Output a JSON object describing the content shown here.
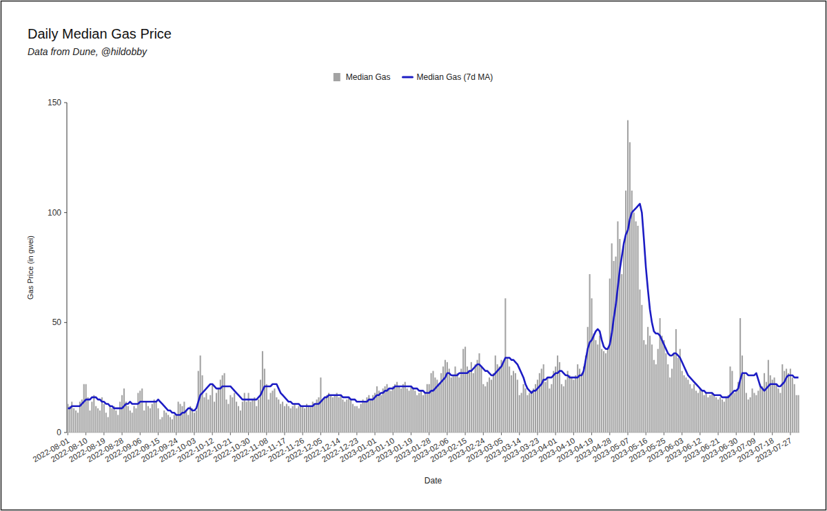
{
  "chart_data": {
    "type": "bar",
    "title": "Daily Median Gas Price",
    "subtitle": "Data from Dune, @hildobby",
    "x_label": "Date",
    "y_label": "Gas Price (in gwei)",
    "categories": [
      "2022-08-01",
      null,
      null,
      null,
      null,
      null,
      null,
      null,
      null,
      "2022-08-10",
      null,
      null,
      null,
      null,
      null,
      null,
      null,
      null,
      "2022-08-19",
      null,
      null,
      null,
      null,
      null,
      null,
      null,
      null,
      "2022-08-28",
      null,
      null,
      null,
      null,
      null,
      null,
      null,
      null,
      "2022-09-06",
      null,
      null,
      null,
      null,
      null,
      null,
      null,
      null,
      "2022-09-15",
      null,
      null,
      null,
      null,
      null,
      null,
      null,
      null,
      "2022-09-24",
      null,
      null,
      null,
      null,
      null,
      null,
      null,
      null,
      "2022-10-03",
      null,
      null,
      null,
      null,
      null,
      null,
      null,
      null,
      "2022-10-12",
      null,
      null,
      null,
      null,
      null,
      null,
      null,
      null,
      "2022-10-21",
      null,
      null,
      null,
      null,
      null,
      null,
      null,
      null,
      "2022-10-30",
      null,
      null,
      null,
      null,
      null,
      null,
      null,
      null,
      "2022-11-08",
      null,
      null,
      null,
      null,
      null,
      null,
      null,
      null,
      "2022-11-17",
      null,
      null,
      null,
      null,
      null,
      null,
      null,
      null,
      "2022-11-26",
      null,
      null,
      null,
      null,
      null,
      null,
      null,
      null,
      "2022-12-05",
      null,
      null,
      null,
      null,
      null,
      null,
      null,
      null,
      "2022-12-14",
      null,
      null,
      null,
      null,
      null,
      null,
      null,
      null,
      "2022-12-23",
      null,
      null,
      null,
      null,
      null,
      null,
      null,
      null,
      "2023-01-01",
      null,
      null,
      null,
      null,
      null,
      null,
      null,
      null,
      "2023-01-10",
      null,
      null,
      null,
      null,
      null,
      null,
      null,
      null,
      "2023-01-19",
      null,
      null,
      null,
      null,
      null,
      null,
      null,
      null,
      "2023-01-28",
      null,
      null,
      null,
      null,
      null,
      null,
      null,
      null,
      "2023-02-06",
      null,
      null,
      null,
      null,
      null,
      null,
      null,
      null,
      "2023-02-15",
      null,
      null,
      null,
      null,
      null,
      null,
      null,
      null,
      "2023-02-24",
      null,
      null,
      null,
      null,
      null,
      null,
      null,
      null,
      "2023-03-05",
      null,
      null,
      null,
      null,
      null,
      null,
      null,
      null,
      "2023-03-14",
      null,
      null,
      null,
      null,
      null,
      null,
      null,
      null,
      "2023-03-23",
      null,
      null,
      null,
      null,
      null,
      null,
      null,
      null,
      "2023-04-01",
      null,
      null,
      null,
      null,
      null,
      null,
      null,
      null,
      "2023-04-10",
      null,
      null,
      null,
      null,
      null,
      null,
      null,
      null,
      "2023-04-19",
      null,
      null,
      null,
      null,
      null,
      null,
      null,
      null,
      "2023-04-28",
      null,
      null,
      null,
      null,
      null,
      null,
      null,
      null,
      "2023-05-07",
      null,
      null,
      null,
      null,
      null,
      null,
      null,
      null,
      "2023-05-16",
      null,
      null,
      null,
      null,
      null,
      null,
      null,
      null,
      "2023-05-25",
      null,
      null,
      null,
      null,
      null,
      null,
      null,
      null,
      "2023-06-03",
      null,
      null,
      null,
      null,
      null,
      null,
      null,
      null,
      "2023-06-12",
      null,
      null,
      null,
      null,
      null,
      null,
      null,
      null,
      "2023-06-21",
      null,
      null,
      null,
      null,
      null,
      null,
      null,
      null,
      "2023-06-30",
      null,
      null,
      null,
      null,
      null,
      null,
      null,
      null,
      "2023-07-09",
      null,
      null,
      null,
      null,
      null,
      null,
      null,
      null,
      "2023-07-18",
      null,
      null,
      null,
      null,
      null,
      null,
      null,
      null,
      "2023-07-27",
      null,
      null,
      null,
      null
    ],
    "series": [
      {
        "name": "Median Gas",
        "type": "bar",
        "color": "#a3a3a3",
        "values": [
          13,
          12,
          14,
          11,
          10,
          9,
          14,
          15,
          22,
          22,
          16,
          10,
          14,
          17,
          12,
          11,
          10,
          16,
          13,
          9,
          7,
          12,
          11,
          12,
          10,
          8,
          14,
          17,
          20,
          14,
          12,
          10,
          9,
          12,
          11,
          18,
          19,
          20,
          10,
          14,
          12,
          11,
          13,
          15,
          14,
          11,
          6,
          7,
          10,
          9,
          8,
          7,
          6,
          8,
          8,
          14,
          13,
          12,
          14,
          10,
          8,
          12,
          11,
          9,
          10,
          28,
          35,
          26,
          16,
          18,
          15,
          17,
          22,
          14,
          18,
          20,
          24,
          26,
          27,
          15,
          13,
          17,
          16,
          18,
          14,
          12,
          10,
          14,
          18,
          14,
          18,
          14,
          15,
          16,
          12,
          15,
          24,
          37,
          29,
          22,
          15,
          18,
          19,
          20,
          16,
          15,
          13,
          14,
          12,
          13,
          12,
          11,
          12,
          13,
          11,
          12,
          12,
          12,
          11,
          13,
          12,
          12,
          14,
          13,
          15,
          16,
          25,
          15,
          16,
          17,
          18,
          17,
          16,
          17,
          18,
          16,
          17,
          15,
          14,
          15,
          16,
          15,
          13,
          12,
          12,
          11,
          13,
          15,
          14,
          16,
          17,
          15,
          17,
          18,
          21,
          19,
          17,
          20,
          21,
          22,
          20,
          19,
          21,
          22,
          23,
          21,
          20,
          22,
          23,
          20,
          19,
          21,
          20,
          19,
          17,
          18,
          19,
          17,
          18,
          22,
          22,
          27,
          28,
          25,
          24,
          22,
          27,
          30,
          33,
          32,
          29,
          25,
          26,
          30,
          27,
          25,
          29,
          38,
          39,
          30,
          28,
          32,
          27,
          31,
          33,
          36,
          30,
          22,
          21,
          23,
          25,
          24,
          27,
          35,
          31,
          30,
          33,
          32,
          61,
          34,
          30,
          26,
          28,
          27,
          24,
          17,
          18,
          22,
          20,
          17,
          18,
          19,
          20,
          22,
          24,
          27,
          29,
          31,
          23,
          25,
          20,
          22,
          28,
          30,
          35,
          32,
          22,
          21,
          24,
          28,
          26,
          25,
          24,
          26,
          31,
          29,
          27,
          30,
          35,
          48,
          72,
          61,
          45,
          42,
          40,
          44,
          38,
          37,
          36,
          38,
          70,
          86,
          78,
          80,
          96,
          88,
          72,
          86,
          110,
          142,
          132,
          110,
          100,
          96,
          94,
          65,
          58,
          42,
          40,
          48,
          44,
          40,
          33,
          31,
          38,
          52,
          44,
          42,
          36,
          31,
          25,
          29,
          36,
          47,
          34,
          38,
          28,
          26,
          25,
          24,
          22,
          20,
          22,
          19,
          18,
          20,
          19,
          17,
          18,
          16,
          17,
          18,
          17,
          16,
          15,
          16,
          15,
          14,
          16,
          17,
          30,
          28,
          18,
          19,
          23,
          52,
          35,
          27,
          18,
          15,
          16,
          20,
          18,
          17,
          19,
          22,
          21,
          27,
          23,
          33,
          26,
          24,
          25,
          22,
          20,
          18,
          31,
          28,
          29,
          27,
          29,
          25,
          22,
          17,
          17
        ]
      },
      {
        "name": "Median Gas (7d MA)",
        "type": "line",
        "color": "#1c1cc4",
        "values": [
          11,
          11,
          12,
          12,
          12,
          12,
          12,
          13,
          14,
          15,
          15,
          15,
          16,
          16,
          16,
          15,
          15,
          14,
          14,
          13,
          13,
          12,
          12,
          11,
          11,
          11,
          11,
          11,
          12,
          13,
          13,
          14,
          13,
          13,
          13,
          13,
          14,
          14,
          14,
          14,
          14,
          14,
          14,
          14,
          14,
          15,
          14,
          13,
          12,
          11,
          10,
          10,
          9,
          9,
          8,
          8,
          8,
          9,
          9,
          10,
          11,
          11,
          10,
          10,
          11,
          14,
          17,
          18,
          19,
          20,
          21,
          22,
          22,
          21,
          20,
          20,
          20,
          21,
          21,
          21,
          21,
          21,
          20,
          19,
          18,
          17,
          16,
          15,
          15,
          15,
          15,
          15,
          15,
          15,
          15,
          16,
          17,
          19,
          21,
          21,
          21,
          21,
          22,
          22,
          22,
          20,
          18,
          17,
          16,
          15,
          14,
          14,
          13,
          13,
          13,
          13,
          12,
          12,
          12,
          12,
          12,
          12,
          12,
          13,
          13,
          13,
          14,
          15,
          16,
          16,
          17,
          17,
          17,
          17,
          17,
          17,
          17,
          16,
          16,
          16,
          16,
          15,
          15,
          15,
          14,
          14,
          14,
          14,
          14,
          14,
          15,
          15,
          15,
          16,
          17,
          17,
          18,
          18,
          19,
          19,
          20,
          20,
          20,
          21,
          21,
          21,
          21,
          21,
          21,
          21,
          21,
          21,
          20,
          20,
          20,
          19,
          19,
          19,
          18,
          18,
          18,
          19,
          19,
          20,
          21,
          22,
          23,
          24,
          25,
          27,
          27,
          26,
          26,
          26,
          26,
          27,
          27,
          27,
          27,
          27,
          28,
          28,
          29,
          30,
          31,
          31,
          30,
          29,
          28,
          28,
          27,
          26,
          26,
          27,
          28,
          29,
          30,
          32,
          34,
          34,
          34,
          33,
          33,
          32,
          31,
          29,
          27,
          25,
          22,
          20,
          19,
          18,
          19,
          19,
          20,
          21,
          22,
          24,
          24,
          25,
          25,
          25,
          26,
          27,
          27,
          28,
          28,
          27,
          26,
          26,
          25,
          25,
          25,
          25,
          25,
          26,
          26,
          28,
          33,
          38,
          41,
          42,
          44,
          46,
          47,
          46,
          42,
          39,
          38,
          38,
          40,
          45,
          52,
          58,
          66,
          74,
          80,
          86,
          90,
          92,
          97,
          100,
          101,
          102,
          103,
          104,
          100,
          88,
          75,
          65,
          56,
          50,
          46,
          45,
          45,
          44,
          42,
          40,
          38,
          36,
          35,
          35,
          36,
          36,
          35,
          34,
          32,
          30,
          28,
          26,
          25,
          24,
          23,
          22,
          21,
          20,
          19,
          19,
          18,
          18,
          18,
          18,
          17,
          17,
          17,
          17,
          16,
          16,
          16,
          16,
          17,
          18,
          19,
          19,
          20,
          24,
          27,
          27,
          27,
          26,
          26,
          26,
          26,
          27,
          24,
          21,
          20,
          19,
          20,
          21,
          22,
          22,
          22,
          22,
          21,
          21,
          22,
          23,
          25,
          26,
          26,
          26,
          25,
          25,
          25
        ]
      }
    ],
    "ylim": [
      0,
      150
    ],
    "yticks": [
      0,
      50,
      100,
      150
    ],
    "grid": false,
    "legend": "top"
  }
}
